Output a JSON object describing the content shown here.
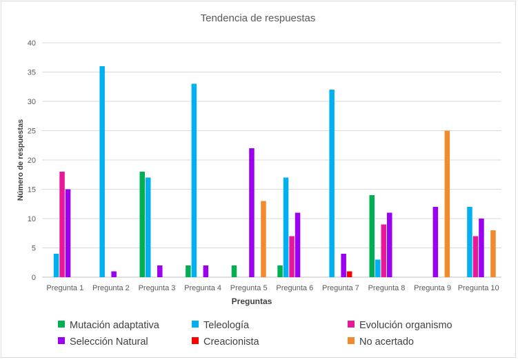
{
  "chart_data": {
    "type": "bar",
    "title": "Tendencia de respuestas",
    "xlabel": "Preguntas",
    "ylabel": "Número de respuestas",
    "ylim": [
      0,
      40
    ],
    "yticks": [
      0,
      5,
      10,
      15,
      20,
      25,
      30,
      35,
      40
    ],
    "grid": true,
    "legend_position": "bottom",
    "categories": [
      "Pregunta 1",
      "Pregunta 2",
      "Pregunta 3",
      "Pregunta 4",
      "Pregunta 5",
      "Pregunta 6",
      "Pregunta 7",
      "Pregunta 8",
      "Pregunta 9",
      "Pregunta 10"
    ],
    "series": [
      {
        "name": "Mutación adaptativa",
        "color": "#00b050",
        "values": [
          0,
          0,
          18,
          2,
          2,
          2,
          0,
          14,
          0,
          0
        ]
      },
      {
        "name": "Teleología",
        "color": "#00b0f0",
        "values": [
          4,
          36,
          17,
          33,
          0,
          17,
          32,
          3,
          0,
          12
        ]
      },
      {
        "name": "Evolución organismo",
        "color": "#e8189a",
        "values": [
          18,
          0,
          0,
          0,
          0,
          7,
          0,
          9,
          0,
          7
        ]
      },
      {
        "name": "Selección Natural",
        "color": "#9b00f0",
        "values": [
          15,
          1,
          2,
          2,
          22,
          11,
          4,
          11,
          12,
          10
        ]
      },
      {
        "name": "Creacionista",
        "color": "#ff0000",
        "values": [
          0,
          0,
          0,
          0,
          0,
          0,
          1,
          0,
          0,
          0
        ]
      },
      {
        "name": "No acertado",
        "color": "#f28a30",
        "values": [
          0,
          0,
          0,
          0,
          13,
          0,
          0,
          0,
          25,
          8
        ]
      }
    ]
  }
}
